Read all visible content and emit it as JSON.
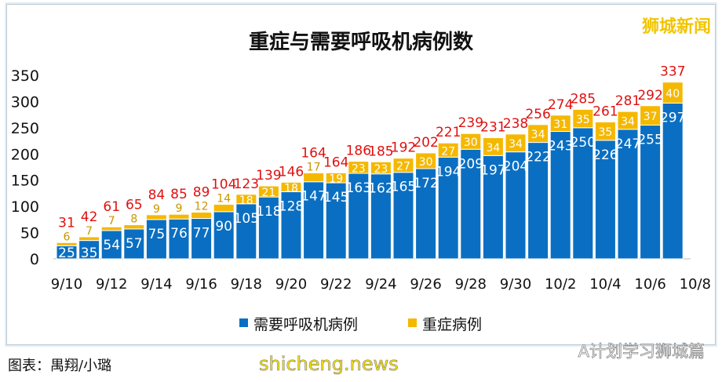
{
  "chart_data": {
    "type": "bar",
    "stacked": true,
    "title": "重症与需要呼吸机病例数",
    "categories": [
      "9/10",
      "9/11",
      "9/12",
      "9/13",
      "9/14",
      "9/15",
      "9/16",
      "9/17",
      "9/18",
      "9/19",
      "9/20",
      "9/21",
      "9/22",
      "9/23",
      "9/24",
      "9/25",
      "9/26",
      "9/27",
      "9/28",
      "9/29",
      "9/30",
      "10/1",
      "10/2",
      "10/3",
      "10/4",
      "10/5",
      "10/6",
      "10/7"
    ],
    "x_tick_labels": [
      "9/10",
      "9/12",
      "9/14",
      "9/16",
      "9/18",
      "9/20",
      "9/22",
      "9/24",
      "9/26",
      "9/28",
      "9/30",
      "10/2",
      "10/4",
      "10/6",
      "10/8"
    ],
    "y_ticks": [
      0,
      50,
      100,
      150,
      200,
      250,
      300,
      350
    ],
    "ylim": [
      0,
      350
    ],
    "series": [
      {
        "name": "需要呼吸机病例",
        "color": "#0a6fc2",
        "values": [
          25,
          35,
          54,
          57,
          75,
          76,
          77,
          90,
          105,
          118,
          128,
          147,
          145,
          163,
          162,
          165,
          172,
          194,
          209,
          197,
          204,
          222,
          243,
          250,
          226,
          247,
          255,
          297
        ]
      },
      {
        "name": "重症病例",
        "color": "#f5b800",
        "values": [
          6,
          7,
          7,
          8,
          9,
          9,
          12,
          14,
          18,
          21,
          18,
          17,
          19,
          23,
          23,
          27,
          30,
          27,
          30,
          34,
          34,
          34,
          31,
          35,
          35,
          34,
          37,
          40
        ]
      }
    ],
    "totals": [
      31,
      42,
      61,
      65,
      84,
      85,
      89,
      104,
      123,
      139,
      146,
      164,
      164,
      186,
      185,
      192,
      202,
      221,
      239,
      231,
      238,
      256,
      274,
      285,
      261,
      281,
      292,
      337
    ],
    "total_label_color": "#e01010",
    "legend_position": "bottom",
    "grid": false
  },
  "watermarks": {
    "top_right": "狮城新闻",
    "bottom_left": "shicheng.news",
    "bottom_right": "A计划学习狮城篇"
  },
  "caption": "图表：禺翔/小璐"
}
